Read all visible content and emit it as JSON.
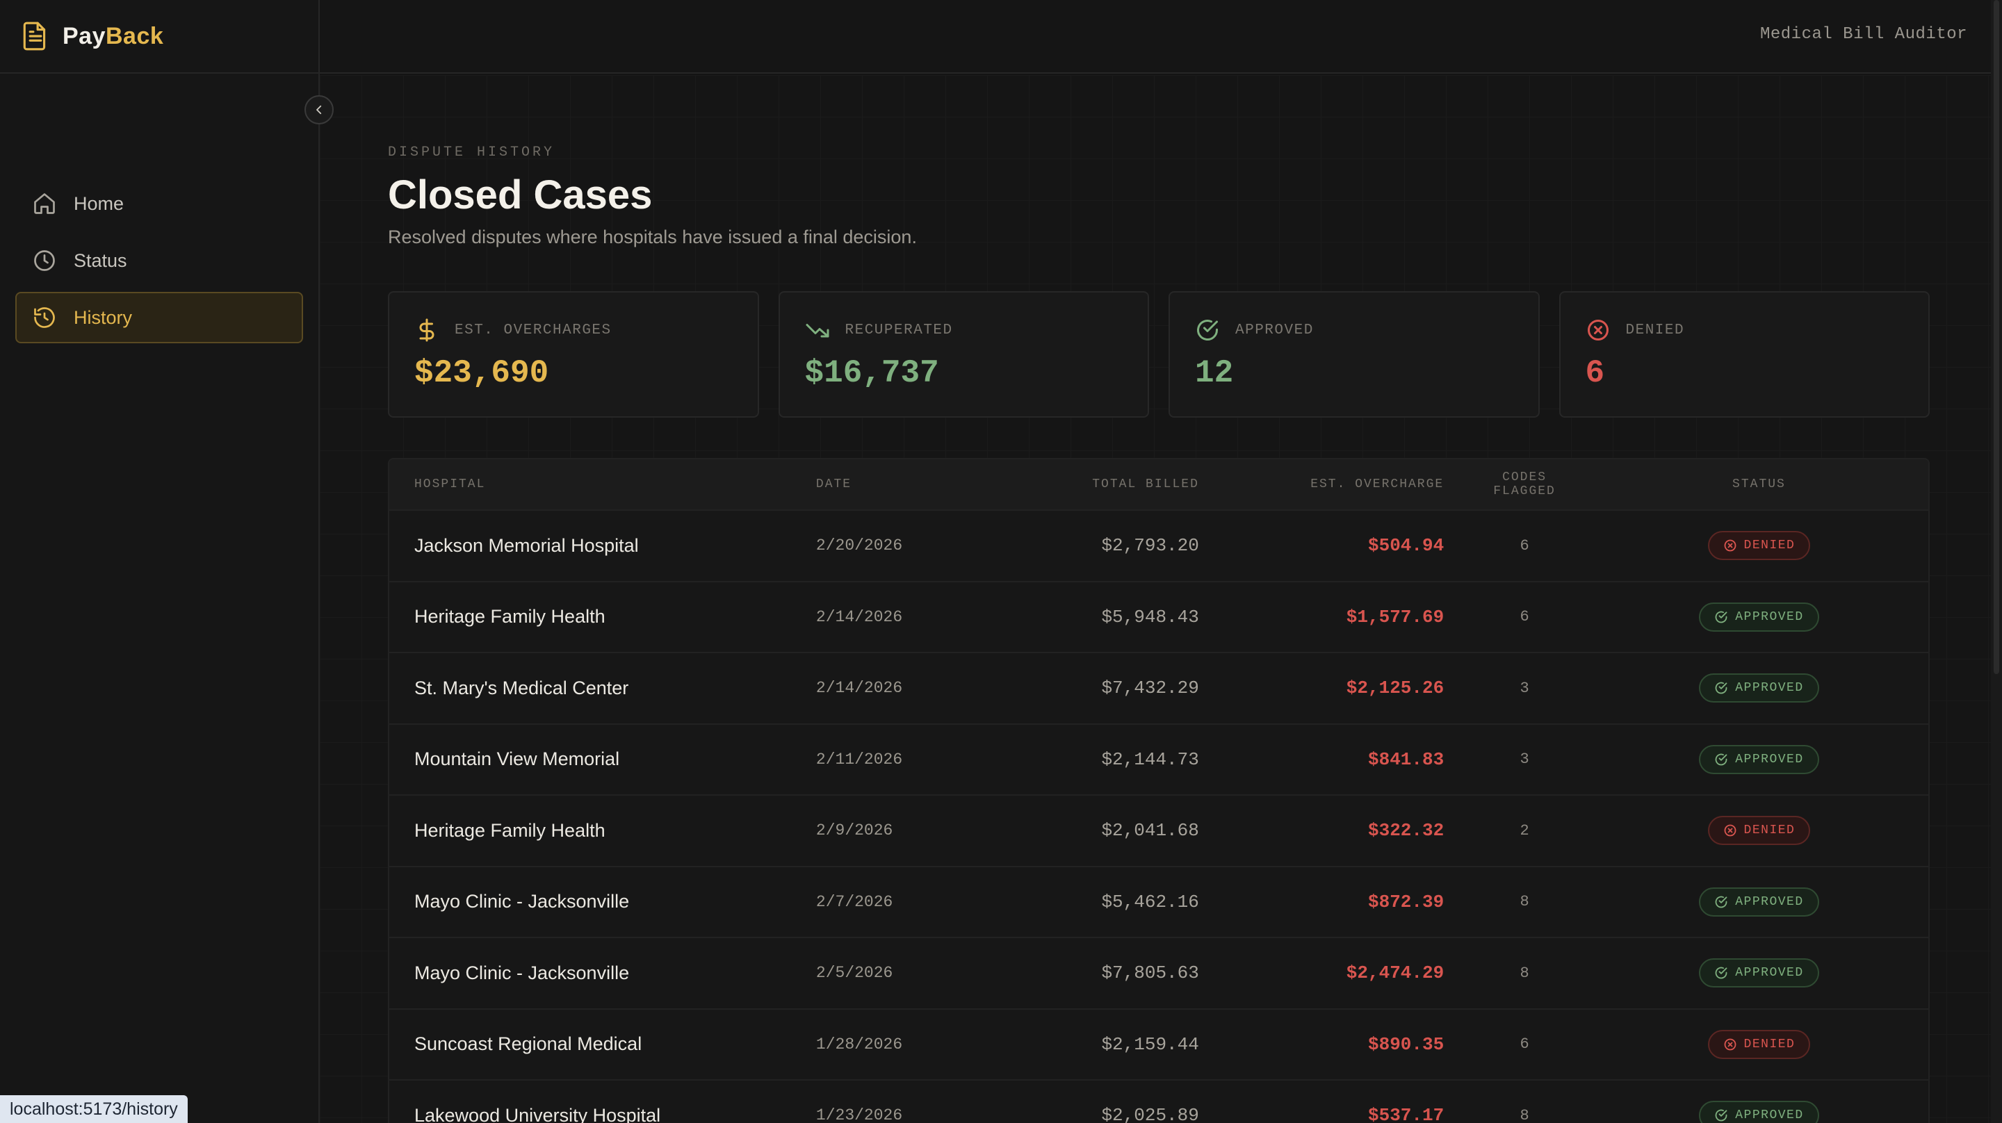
{
  "brand": {
    "pay": "Pay",
    "back": "Back"
  },
  "topbar": {
    "title": "Medical Bill Auditor"
  },
  "sidebar": {
    "items": [
      {
        "label": "Home",
        "icon": "home-icon",
        "active": false
      },
      {
        "label": "Status",
        "icon": "clock-icon",
        "active": false
      },
      {
        "label": "History",
        "icon": "history-icon",
        "active": true
      }
    ]
  },
  "header": {
    "eyebrow": "DISPUTE HISTORY",
    "title": "Closed Cases",
    "subtitle": "Resolved disputes where hospitals have issued a final decision."
  },
  "stats": [
    {
      "label": "EST. OVERCHARGES",
      "value": "$23,690",
      "icon": "dollar-icon",
      "color": "#e5b84f"
    },
    {
      "label": "RECUPERATED",
      "value": "$16,737",
      "icon": "trending-down-icon",
      "color": "#7fb07f"
    },
    {
      "label": "APPROVED",
      "value": "12",
      "icon": "check-circle-icon",
      "color": "#7fb07f"
    },
    {
      "label": "DENIED",
      "value": "6",
      "icon": "x-circle-icon",
      "color": "#d9554f"
    }
  ],
  "table": {
    "headers": {
      "hospital": "HOSPITAL",
      "date": "DATE",
      "billed": "TOTAL BILLED",
      "overcharge": "EST. OVERCHARGE",
      "codes": "CODES FLAGGED",
      "status": "STATUS"
    },
    "rows": [
      {
        "hospital": "Jackson Memorial Hospital",
        "date": "2/20/2026",
        "billed": "$2,793.20",
        "overcharge": "$504.94",
        "codes": "6",
        "status": "DENIED"
      },
      {
        "hospital": "Heritage Family Health",
        "date": "2/14/2026",
        "billed": "$5,948.43",
        "overcharge": "$1,577.69",
        "codes": "6",
        "status": "APPROVED"
      },
      {
        "hospital": "St. Mary's Medical Center",
        "date": "2/14/2026",
        "billed": "$7,432.29",
        "overcharge": "$2,125.26",
        "codes": "3",
        "status": "APPROVED"
      },
      {
        "hospital": "Mountain View Memorial",
        "date": "2/11/2026",
        "billed": "$2,144.73",
        "overcharge": "$841.83",
        "codes": "3",
        "status": "APPROVED"
      },
      {
        "hospital": "Heritage Family Health",
        "date": "2/9/2026",
        "billed": "$2,041.68",
        "overcharge": "$322.32",
        "codes": "2",
        "status": "DENIED"
      },
      {
        "hospital": "Mayo Clinic - Jacksonville",
        "date": "2/7/2026",
        "billed": "$5,462.16",
        "overcharge": "$872.39",
        "codes": "8",
        "status": "APPROVED"
      },
      {
        "hospital": "Mayo Clinic - Jacksonville",
        "date": "2/5/2026",
        "billed": "$7,805.63",
        "overcharge": "$2,474.29",
        "codes": "8",
        "status": "APPROVED"
      },
      {
        "hospital": "Suncoast Regional Medical",
        "date": "1/28/2026",
        "billed": "$2,159.44",
        "overcharge": "$890.35",
        "codes": "6",
        "status": "DENIED"
      },
      {
        "hospital": "Lakewood University Hospital",
        "date": "1/23/2026",
        "billed": "$2,025.89",
        "overcharge": "$537.17",
        "codes": "8",
        "status": "APPROVED"
      }
    ]
  },
  "status_url": "localhost:5173/history"
}
